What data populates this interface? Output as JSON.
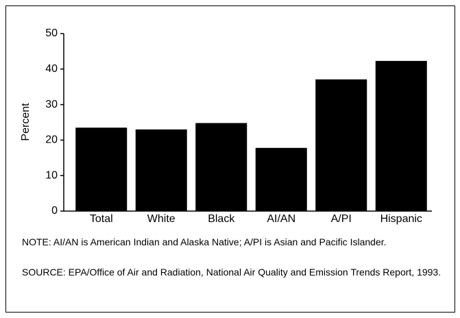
{
  "chart_data": {
    "type": "bar",
    "y_label": "Percent",
    "categories": [
      "Total",
      "White",
      "Black",
      "AI/AN",
      "A/PI",
      "Hispanic"
    ],
    "values": [
      23.5,
      23,
      24.8,
      17.8,
      37.1,
      42.3
    ],
    "color": "#000000",
    "ylim": [
      0,
      50
    ],
    "yticks": [
      0,
      10,
      20,
      30,
      40,
      50
    ],
    "grid": false,
    "note": "NOTE: AI/AN is American Indian and Alaska Native; A/PI is Asian and Pacific Islander.",
    "source": "SOURCE: EPA/Office of Air and Radiation, National Air Quality and Emission Trends Report, 1993."
  }
}
